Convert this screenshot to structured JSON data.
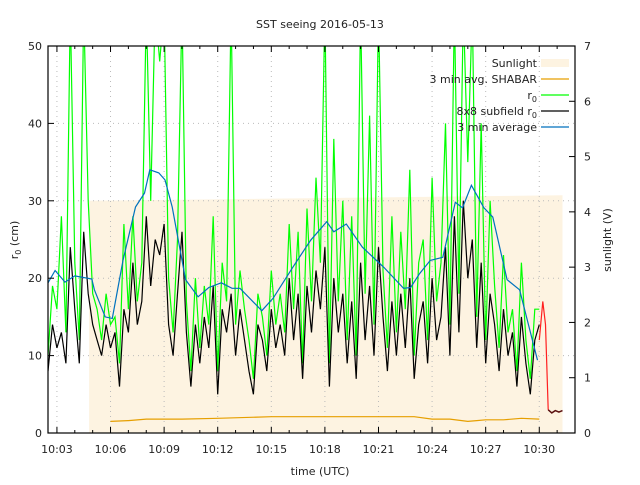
{
  "chart_data": {
    "type": "line",
    "title": "SST seeing 2016-05-13",
    "xlabel": "time (UTC)",
    "ylabel": {
      "text": "r",
      "sub": "0",
      "rest": " (cm)"
    },
    "y2label": "sunlight (V)",
    "x_units": "minutes after 10:00 UTC",
    "xlim": [
      2.5,
      32.0
    ],
    "ylim": [
      0,
      50
    ],
    "y2lim": [
      0,
      7
    ],
    "xticks": [
      3,
      6,
      9,
      12,
      15,
      18,
      21,
      24,
      27,
      30
    ],
    "xtick_labels": [
      "10:03",
      "10:06",
      "10:09",
      "10:12",
      "10:15",
      "10:18",
      "10:21",
      "10:24",
      "10:27",
      "10:30"
    ],
    "yticks": [
      0,
      10,
      20,
      30,
      40,
      50
    ],
    "y2ticks": [
      0,
      1,
      2,
      3,
      4,
      5,
      6,
      7
    ],
    "grid": true,
    "legend_position": "top-right",
    "legend": [
      {
        "text": "Sunlight",
        "sub": "",
        "color": "#fdf3e1"
      },
      {
        "text": "3 min avg. SHABAR",
        "sub": "",
        "color": "#e69f00"
      },
      {
        "text": "r",
        "sub": "0",
        "color": "#00ff00"
      },
      {
        "text": "8x8 subfield r",
        "sub": "0",
        "color": "#000000"
      },
      {
        "text": "3 min average",
        "sub": "",
        "color": "#0072bd"
      }
    ],
    "series_start": 2.5,
    "series_step": 0.25,
    "sunlight_V": [
      [
        4.8,
        4.2
      ],
      [
        31.3,
        4.3
      ]
    ],
    "shabar_cm": [
      [
        6,
        1.5
      ],
      [
        7,
        1.6
      ],
      [
        8,
        1.8
      ],
      [
        10,
        1.8
      ],
      [
        12,
        1.9
      ],
      [
        15,
        2.1
      ],
      [
        18,
        2.1
      ],
      [
        21,
        2.1
      ],
      [
        23,
        2.1
      ],
      [
        24,
        1.8
      ],
      [
        25,
        1.8
      ],
      [
        26,
        1.5
      ],
      [
        26.5,
        1.6
      ],
      [
        27,
        1.7
      ],
      [
        28,
        1.7
      ],
      [
        29,
        1.9
      ],
      [
        30,
        1.8
      ]
    ],
    "r0_cm": [
      10,
      19,
      16,
      28,
      13,
      55,
      22,
      12,
      55,
      30,
      18,
      16,
      12,
      18,
      14,
      15,
      9,
      27,
      16,
      28,
      17,
      22,
      55,
      30,
      55,
      48,
      55,
      20,
      13,
      25,
      55,
      17,
      8,
      20,
      11,
      19,
      14,
      28,
      8,
      22,
      17,
      55,
      14,
      21,
      16,
      12,
      7,
      18,
      15,
      10,
      21,
      14,
      18,
      13,
      27,
      16,
      26,
      9,
      29,
      17,
      33,
      22,
      55,
      9,
      38,
      17,
      30,
      12,
      28,
      10,
      55,
      18,
      41,
      14,
      55,
      21,
      11,
      28,
      13,
      26,
      16,
      34,
      10,
      22,
      25,
      12,
      33,
      17,
      22,
      40,
      14,
      55,
      18,
      55,
      35,
      55,
      15,
      40,
      12,
      30,
      19,
      11,
      23,
      13,
      16,
      8,
      22,
      12,
      7,
      16,
      16
    ],
    "subfield_r0_cm": [
      8,
      14,
      11,
      13,
      9,
      24,
      16,
      9,
      26,
      18,
      14,
      12,
      10,
      14,
      11,
      13,
      6,
      16,
      13,
      22,
      14,
      17,
      28,
      19,
      25,
      23,
      27,
      14,
      10,
      18,
      26,
      13,
      6,
      14,
      9,
      15,
      11,
      19,
      5,
      16,
      13,
      18,
      10,
      16,
      12,
      8,
      5,
      14,
      12,
      8,
      16,
      11,
      14,
      10,
      20,
      12,
      18,
      7,
      19,
      13,
      21,
      16,
      24,
      6,
      20,
      13,
      18,
      9,
      17,
      7,
      22,
      12,
      19,
      10,
      24,
      15,
      8,
      17,
      10,
      18,
      11,
      20,
      7,
      14,
      17,
      9,
      20,
      12,
      15,
      24,
      10,
      28,
      13,
      30,
      20,
      25,
      11,
      22,
      9,
      18,
      14,
      8,
      16,
      10,
      13,
      6,
      15,
      9,
      5,
      12,
      14
    ],
    "tail_red_cm": [
      [
        30.0,
        12
      ],
      [
        30.2,
        17
      ],
      [
        30.35,
        14
      ],
      [
        30.5,
        3
      ]
    ],
    "tail_darkred_cm": [
      [
        30.5,
        3
      ],
      [
        30.7,
        2.6
      ],
      [
        30.9,
        2.9
      ],
      [
        31.1,
        2.7
      ],
      [
        31.3,
        2.9
      ]
    ],
    "avg_3min_cm": [
      [
        2.5,
        19.4
      ],
      [
        2.9,
        21
      ],
      [
        3.45,
        19.5
      ],
      [
        4.0,
        20.3
      ],
      [
        4.95,
        19.9
      ],
      [
        5.1,
        18.5
      ],
      [
        5.7,
        15
      ],
      [
        6.1,
        14.8
      ],
      [
        6.7,
        22.3
      ],
      [
        7.4,
        29.2
      ],
      [
        7.9,
        31
      ],
      [
        8.2,
        34
      ],
      [
        8.7,
        33.6
      ],
      [
        9.05,
        32.7
      ],
      [
        9.45,
        29.2
      ],
      [
        10.2,
        19.8
      ],
      [
        10.9,
        17.6
      ],
      [
        11.5,
        18.8
      ],
      [
        12.2,
        19.4
      ],
      [
        12.8,
        18.7
      ],
      [
        13.25,
        18.7
      ],
      [
        14.47,
        15.8
      ],
      [
        15.1,
        17.4
      ],
      [
        16.2,
        21.4
      ],
      [
        17.2,
        24.9
      ],
      [
        18.1,
        27.3
      ],
      [
        18.5,
        26
      ],
      [
        19.2,
        27
      ],
      [
        20.1,
        24
      ],
      [
        21.3,
        21.4
      ],
      [
        22.4,
        18.7
      ],
      [
        22.8,
        18.8
      ],
      [
        23.3,
        20.6
      ],
      [
        23.9,
        22.3
      ],
      [
        24.6,
        22.7
      ],
      [
        25.3,
        29.8
      ],
      [
        25.7,
        29.1
      ],
      [
        26.2,
        32
      ],
      [
        26.9,
        29.1
      ],
      [
        27.4,
        27.9
      ],
      [
        28.2,
        19.8
      ],
      [
        28.9,
        18.5
      ],
      [
        29.9,
        9.4
      ]
    ]
  }
}
